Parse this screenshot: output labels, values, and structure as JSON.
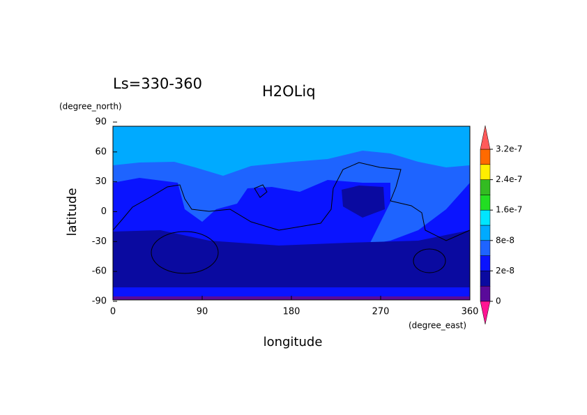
{
  "chart_data": {
    "type": "contour",
    "title": "H2OLiq",
    "subtitle": "Ls=330-360",
    "x_label": "longitude",
    "y_label": "latitude",
    "x_unit": "(degree_east)",
    "y_unit": "(degree_north)",
    "xlim": [
      0,
      360
    ],
    "xticks": [
      0,
      90,
      180,
      270,
      360
    ],
    "ylim": [
      -90,
      90
    ],
    "yticks": [
      -90,
      -60,
      -30,
      0,
      30,
      60,
      90
    ],
    "levels": [
      0,
      1e-08,
      2e-08,
      4e-08,
      8e-08,
      1.2e-07,
      1.6e-07,
      2e-07,
      2.4e-07,
      2.8e-07,
      3.2e-07
    ],
    "level_colors": [
      "#5a0a9a",
      "#0a0aa0",
      "#0a14ff",
      "#1e64ff",
      "#00aaff",
      "#00e5ff",
      "#22dd22",
      "#33bb22",
      "#ffee00",
      "#ff6a00"
    ],
    "under_color": "#ff1493",
    "over_color": "#ff5a5a",
    "colorbar_ticks": [
      {
        "value": 0,
        "label": "0"
      },
      {
        "value": 2e-08,
        "label": "2e-8"
      },
      {
        "value": 8e-08,
        "label": "8e-8"
      },
      {
        "value": 1.6e-07,
        "label": "1.6e-7"
      },
      {
        "value": 2.4e-07,
        "label": "2.4e-7"
      },
      {
        "value": 3.2e-07,
        "label": "3.2e-7"
      }
    ]
  }
}
